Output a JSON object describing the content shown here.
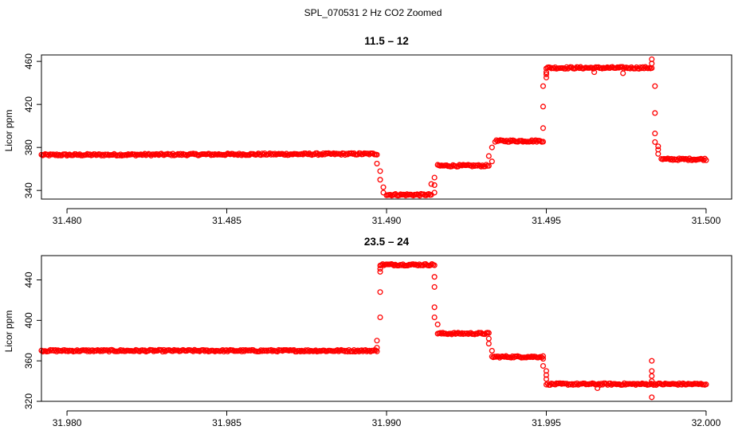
{
  "figure": {
    "title": "SPL_070531  2 Hz CO2 Zoomed"
  },
  "style": {
    "point_color": "#ff0000",
    "axis_color": "#000000"
  },
  "chart_data": [
    {
      "type": "scatter",
      "title": "11.5 – 12",
      "xlabel": "",
      "ylabel": "Licor ppm",
      "xlim": [
        31.4792,
        31.5008
      ],
      "ylim": [
        332,
        466
      ],
      "xticks": [
        31.48,
        31.485,
        31.49,
        31.495,
        31.5
      ],
      "xtick_labels": [
        "31.480",
        "31.485",
        "31.490",
        "31.495",
        "31.500"
      ],
      "yticks": [
        340,
        380,
        420,
        460
      ],
      "ytick_labels": [
        "340",
        "380",
        "420",
        "460"
      ],
      "grid": false,
      "segments": [
        {
          "x": [
            31.4792,
            31.4897
          ],
          "y": [
            373,
            374
          ]
        },
        {
          "x": [
            31.49,
            31.4914
          ],
          "y": [
            336,
            336
          ]
        },
        {
          "x": [
            31.4916,
            31.4932
          ],
          "y": [
            363,
            363
          ]
        },
        {
          "x": [
            31.4934,
            31.4949
          ],
          "y": [
            386,
            386
          ]
        },
        {
          "x": [
            31.495,
            31.4983
          ],
          "y": [
            454,
            454
          ]
        },
        {
          "x": [
            31.4986,
            31.5
          ],
          "y": [
            369,
            369
          ]
        }
      ],
      "points": {
        "x": [
          31.4897,
          31.4898,
          31.4898,
          31.4899,
          31.4899,
          31.4914,
          31.4915,
          31.4915,
          31.4915,
          31.4932,
          31.4933,
          31.4933,
          31.4949,
          31.4949,
          31.4949,
          31.495,
          31.495,
          31.495,
          31.4965,
          31.4974,
          31.4983,
          31.4983,
          31.4984,
          31.4984,
          31.4984,
          31.4984,
          31.4985,
          31.4985,
          31.4985
        ],
        "y": [
          365,
          358,
          350,
          343,
          338,
          346,
          352,
          345,
          338,
          372,
          380,
          367,
          398,
          418,
          437,
          445,
          448,
          450,
          450,
          449,
          462,
          458,
          437,
          412,
          393,
          385,
          381,
          378,
          374
        ]
      }
    },
    {
      "type": "scatter",
      "title": "23.5 – 24",
      "xlabel": "",
      "ylabel": "Licor ppm",
      "xlim": [
        31.9792,
        32.0008
      ],
      "ylim": [
        320,
        464
      ],
      "xticks": [
        31.98,
        31.985,
        31.99,
        31.995,
        32.0
      ],
      "xtick_labels": [
        "31.980",
        "31.985",
        "31.990",
        "31.995",
        "32.000"
      ],
      "yticks": [
        320,
        360,
        400,
        440
      ],
      "ytick_labels": [
        "320",
        "360",
        "400",
        "440"
      ],
      "grid": false,
      "segments": [
        {
          "x": [
            31.9792,
            31.9897
          ],
          "y": [
            370,
            370
          ]
        },
        {
          "x": [
            31.9898,
            31.9915
          ],
          "y": [
            455,
            455
          ]
        },
        {
          "x": [
            31.9916,
            31.9932
          ],
          "y": [
            387,
            387
          ]
        },
        {
          "x": [
            31.9933,
            31.9949
          ],
          "y": [
            364,
            364
          ]
        },
        {
          "x": [
            31.995,
            32.0
          ],
          "y": [
            337,
            337
          ]
        }
      ],
      "points": {
        "x": [
          31.9897,
          31.9897,
          31.9898,
          31.9898,
          31.9898,
          31.9898,
          31.9915,
          31.9915,
          31.9915,
          31.9915,
          31.9916,
          31.9932,
          31.9932,
          31.9933,
          31.9949,
          31.9949,
          31.995,
          31.995,
          31.995,
          31.9966,
          31.9983,
          31.9983,
          31.9983,
          31.9983,
          31.9983
        ],
        "y": [
          380,
          373,
          403,
          428,
          448,
          451,
          443,
          433,
          413,
          403,
          396,
          382,
          377,
          370,
          362,
          355,
          350,
          346,
          342,
          333,
          360,
          350,
          345,
          340,
          324
        ]
      }
    }
  ]
}
